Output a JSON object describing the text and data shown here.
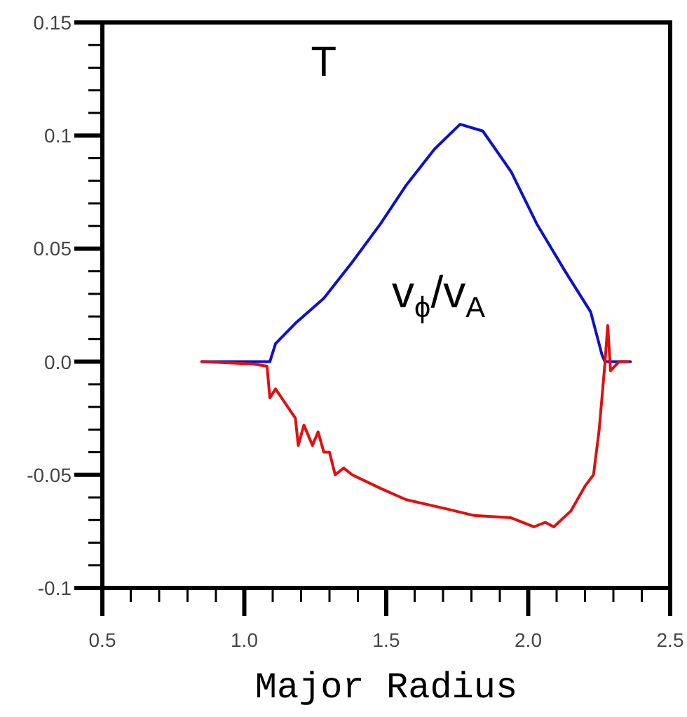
{
  "chart_data": {
    "type": "line",
    "title": "T",
    "xlabel": "Major Radius",
    "xlim": [
      0.5,
      2.5
    ],
    "ylim": [
      -0.1,
      0.15
    ],
    "xticks": [
      0.5,
      {
        "value": 1.0,
        "label": "1.0"
      },
      1.5,
      {
        "value": 2.0,
        "label": "2.0"
      },
      2.5
    ],
    "yticks": [
      -0.1,
      -0.05,
      {
        "value": 0,
        "label": "0.0"
      },
      0.05,
      0.1,
      0.15
    ],
    "marker": "none",
    "line_style": "solid",
    "series": [
      {
        "name": "v$_{ϕ}$/v$_{A}$",
        "color": "#1010c8",
        "x": [
          0.85,
          1.09,
          1.11,
          1.18,
          1.28,
          1.38,
          1.48,
          1.57,
          1.67,
          1.76,
          1.84,
          1.94,
          2.03,
          2.13,
          2.22,
          2.26,
          2.27,
          2.36
        ],
        "values": [
          0,
          0,
          0.008,
          0.017,
          0.028,
          0.044,
          0.061,
          0.078,
          0.094,
          0.105,
          0.102,
          0.084,
          0.061,
          0.04,
          0.022,
          0.003,
          0,
          0
        ]
      },
      {
        "color": "#e01010",
        "x": [
          0.85,
          1.03,
          1.08,
          1.09,
          1.11,
          1.18,
          1.19,
          1.21,
          1.24,
          1.26,
          1.28,
          1.3,
          1.32,
          1.35,
          1.38,
          1.48,
          1.57,
          1.71,
          1.81,
          1.94,
          2.02,
          2.06,
          2.09,
          2.15,
          2.2,
          2.23,
          2.25,
          2.27,
          2.28,
          2.29,
          2.32,
          2.35
        ],
        "values": [
          0,
          -0.001,
          -0.002,
          -0.016,
          -0.012,
          -0.025,
          -0.037,
          -0.028,
          -0.037,
          -0.031,
          -0.04,
          -0.04,
          -0.05,
          -0.047,
          -0.05,
          -0.056,
          -0.061,
          -0.065,
          -0.068,
          -0.069,
          -0.073,
          -0.071,
          -0.073,
          -0.066,
          -0.055,
          -0.05,
          -0.03,
          -0.001,
          0.016,
          -0.004,
          0,
          0
        ]
      }
    ]
  }
}
